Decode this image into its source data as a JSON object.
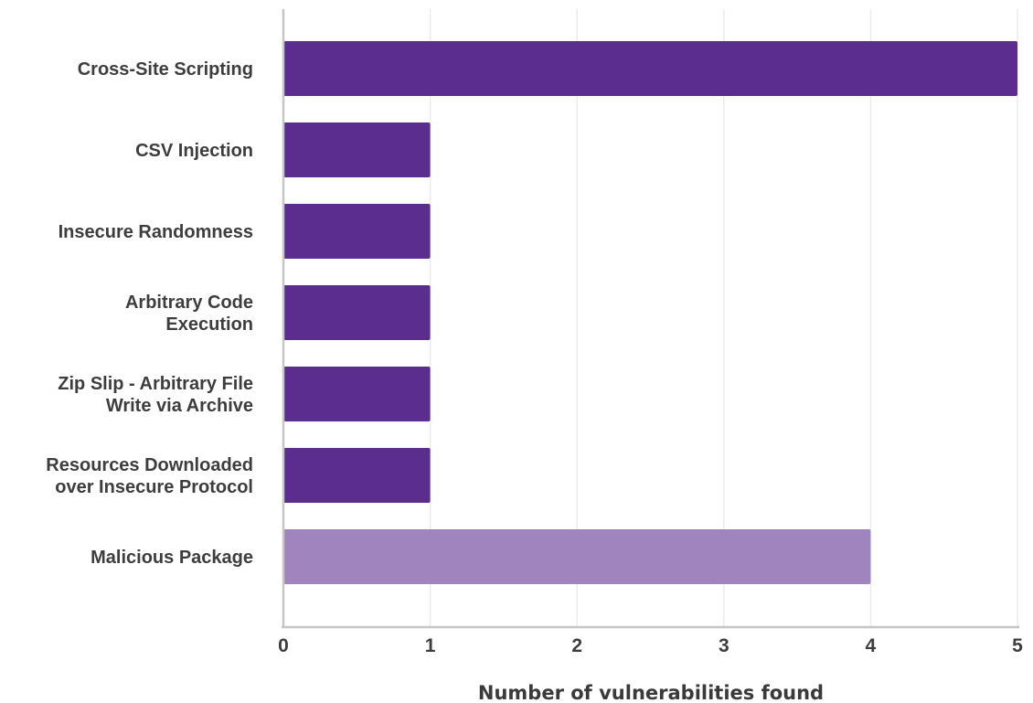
{
  "chart_data": {
    "type": "bar",
    "orientation": "horizontal",
    "categories": [
      [
        "Cross-Site Scripting"
      ],
      [
        "CSV Injection"
      ],
      [
        "Insecure Randomness"
      ],
      [
        "Arbitrary Code",
        "Execution"
      ],
      [
        "Zip Slip - Arbitrary File",
        "Write via Archive"
      ],
      [
        "Resources Downloaded",
        "over Insecure Protocol"
      ],
      [
        "Malicious Package"
      ]
    ],
    "values": [
      5,
      1,
      1,
      1,
      1,
      1,
      4
    ],
    "bar_colors": [
      "#5b2d8e",
      "#5b2d8e",
      "#5b2d8e",
      "#5b2d8e",
      "#5b2d8e",
      "#5b2d8e",
      "#9f84be"
    ],
    "xlabel": "Number of vulnerabilities found",
    "ylabel": "",
    "title": "",
    "xlim": [
      0,
      5
    ],
    "xticks": [
      "0",
      "1",
      "2",
      "3",
      "4",
      "5"
    ],
    "grid": "vertical",
    "legend": "none"
  }
}
